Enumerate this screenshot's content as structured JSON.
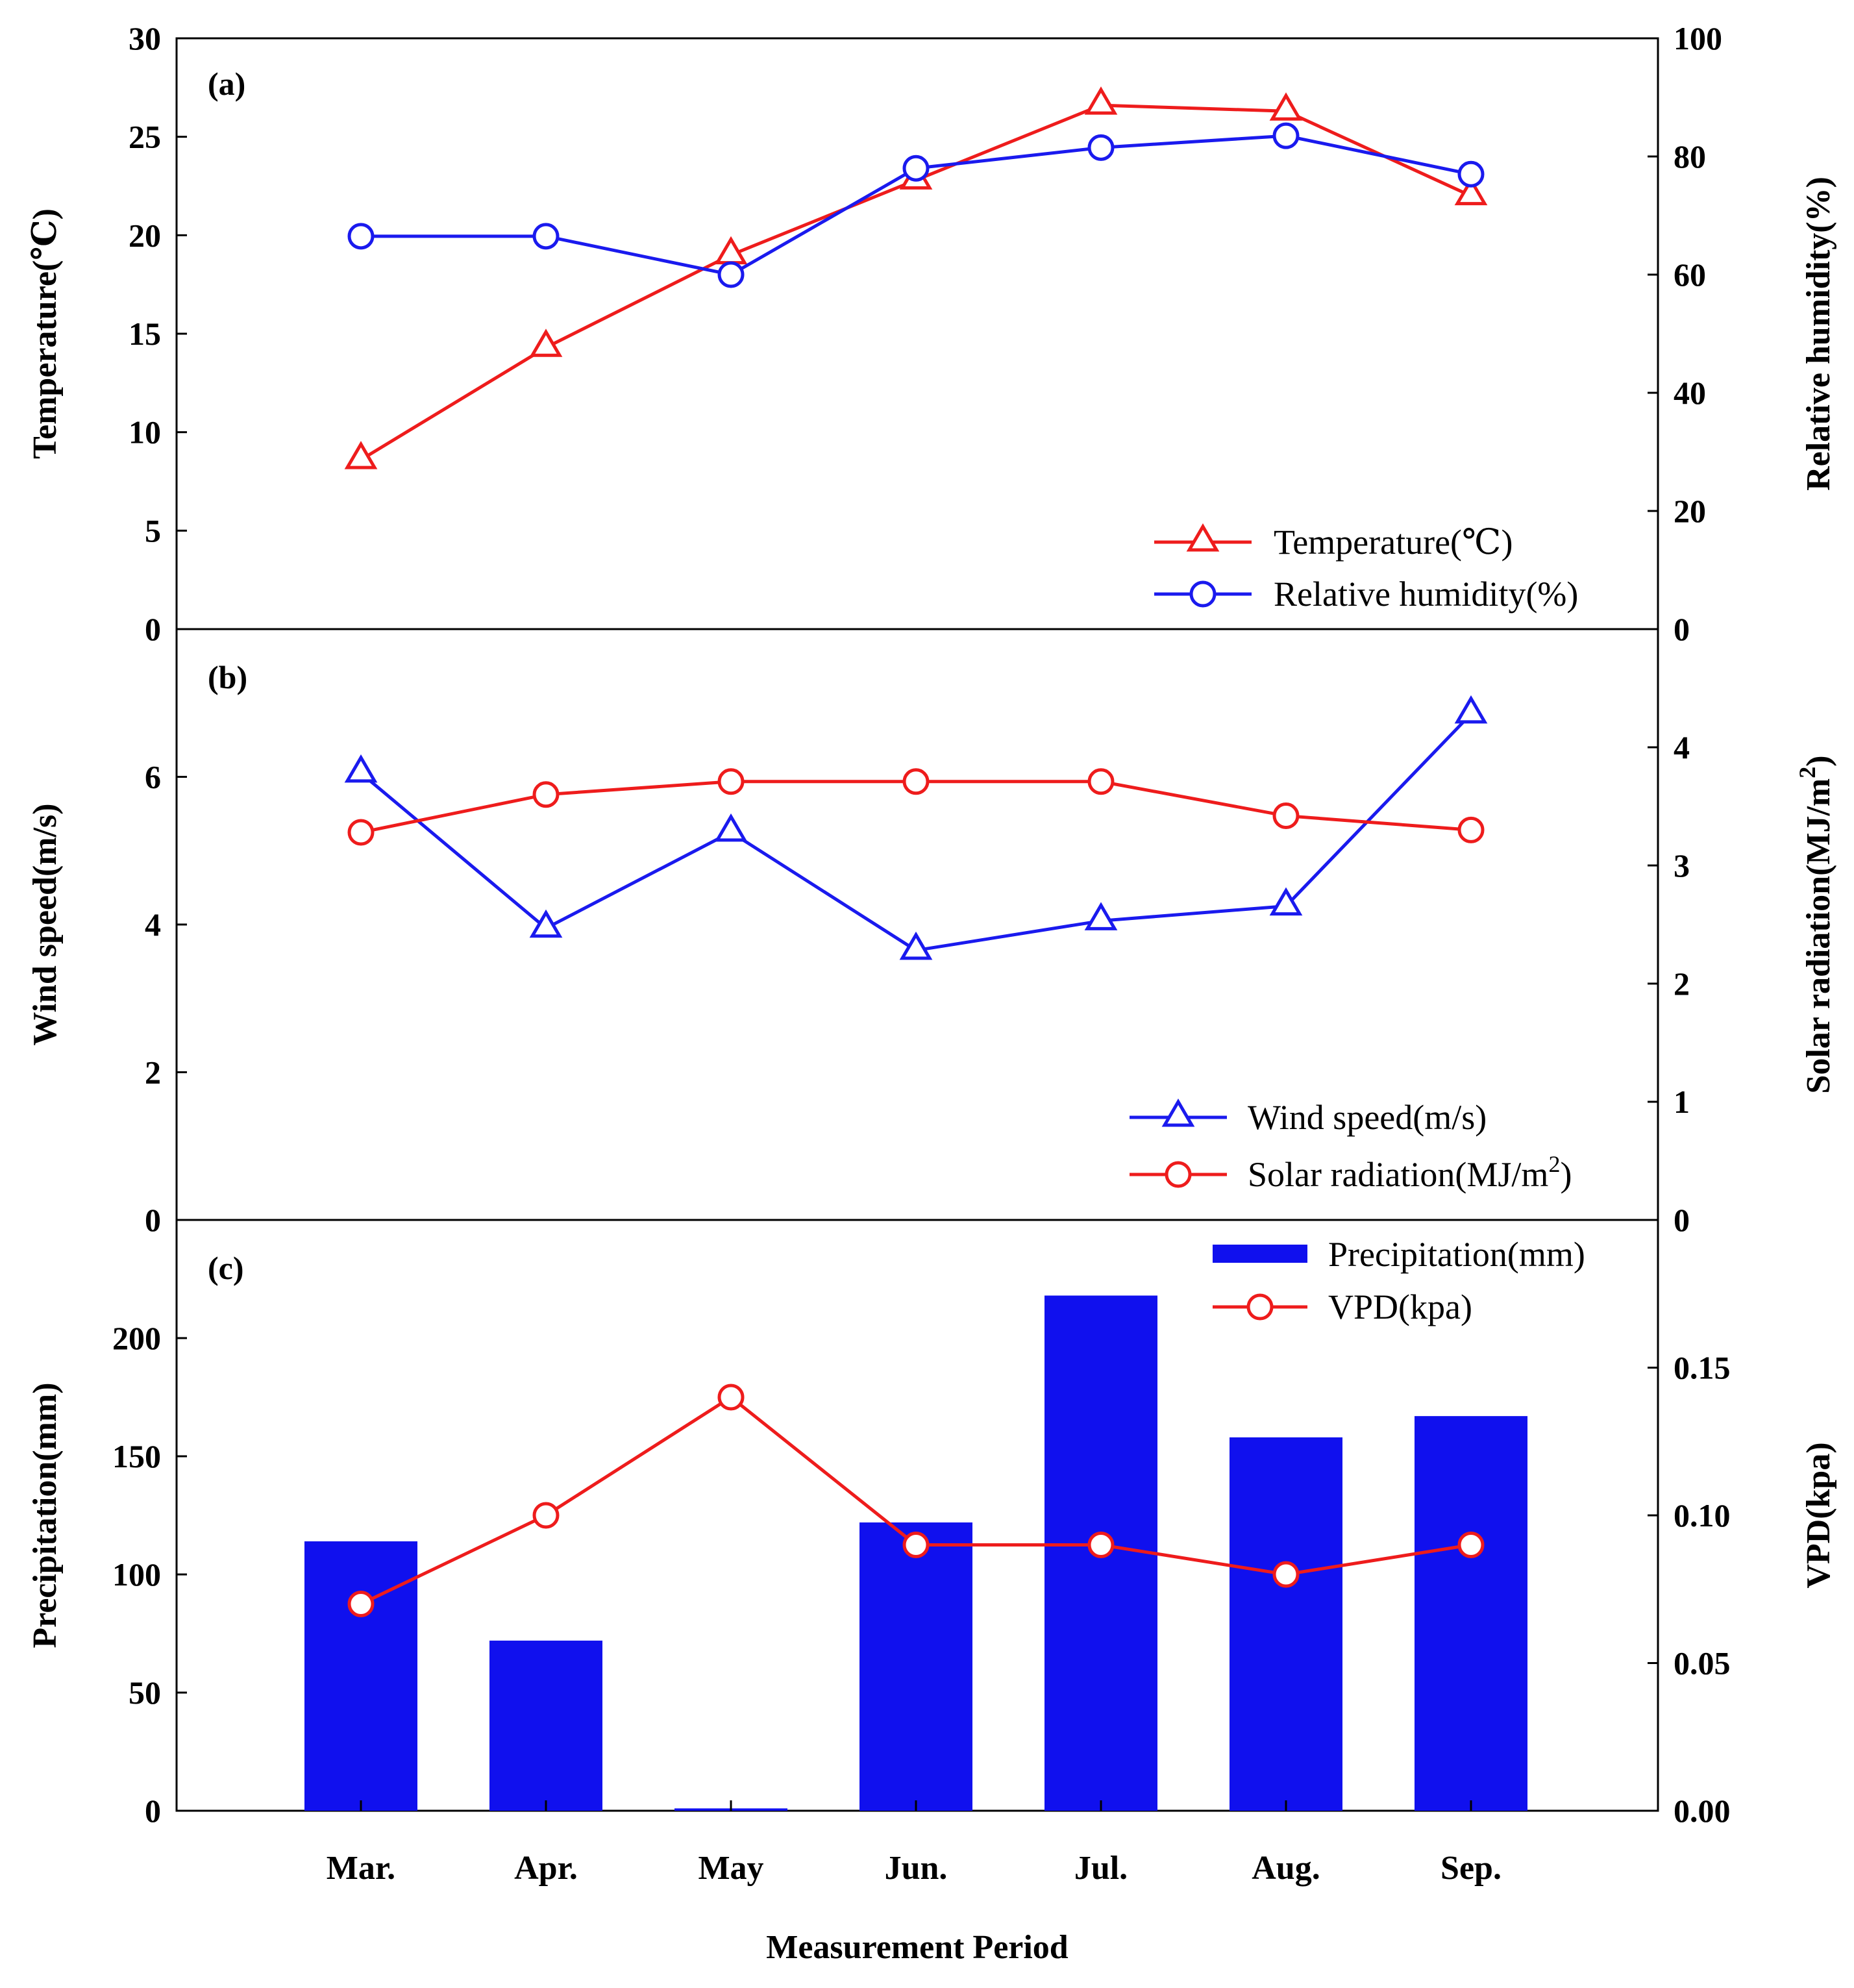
{
  "figure": {
    "xlabel": "Measurement Period",
    "categories": [
      "Mar.",
      "Apr.",
      "May",
      "Jun.",
      "Jul.",
      "Aug.",
      "Sep."
    ],
    "colors": {
      "red": "#ee1c1c",
      "blue": "#1a1aee",
      "bar": "#1010ee"
    }
  },
  "chart_data": [
    {
      "panel": "(a)",
      "type": "line",
      "categories": [
        "Mar.",
        "Apr.",
        "May",
        "Jun.",
        "Jul.",
        "Aug.",
        "Sep."
      ],
      "left_axis": {
        "label": "Temperature(℃)",
        "ylim": [
          0,
          30
        ],
        "ticks": [
          "0",
          "5",
          "10",
          "15",
          "20",
          "25",
          "30"
        ]
      },
      "right_axis": {
        "label": "Relative humidity(%)",
        "ylim": [
          0,
          100
        ],
        "ticks": [
          "0",
          "20",
          "40",
          "60",
          "80",
          "100"
        ]
      },
      "series": [
        {
          "name": "Temperature(℃)",
          "axis": "left",
          "marker": "triangle",
          "color": "#ee1c1c",
          "values": [
            8.6,
            14.3,
            19.0,
            22.8,
            26.6,
            26.3,
            22.0
          ]
        },
        {
          "name": "Relative humidity(%)",
          "axis": "right",
          "marker": "circle",
          "color": "#1a1aee",
          "values": [
            66.5,
            66.5,
            60.0,
            78.0,
            81.5,
            83.5,
            77.0
          ]
        }
      ],
      "legend": [
        "Temperature(℃)",
        "Relative humidity(%)"
      ]
    },
    {
      "panel": "(b)",
      "type": "line",
      "categories": [
        "Mar.",
        "Apr.",
        "May",
        "Jun.",
        "Jul.",
        "Aug.",
        "Sep."
      ],
      "left_axis": {
        "label": "Wind speed(m/s)",
        "ylim": [
          0,
          8
        ],
        "ticks": [
          "0",
          "2",
          "4",
          "6"
        ]
      },
      "right_axis": {
        "label": "Solar radiation(MJ/m",
        "label_sup": "2",
        "label_tail": ")",
        "ylim": [
          0,
          5
        ],
        "ticks": [
          "0",
          "1",
          "2",
          "3",
          "4"
        ]
      },
      "series": [
        {
          "name": "Wind speed(m/s)",
          "axis": "left",
          "marker": "triangle",
          "color": "#1a1aee",
          "values": [
            6.05,
            3.95,
            5.25,
            3.65,
            4.05,
            4.25,
            6.85
          ]
        },
        {
          "name": "Solar radiation(MJ/m2)",
          "axis": "right",
          "marker": "circle",
          "color": "#ee1c1c",
          "values": [
            3.28,
            3.6,
            3.71,
            3.71,
            3.71,
            3.42,
            3.3
          ]
        }
      ],
      "legend": [
        {
          "text": "Wind speed(m/s)"
        },
        {
          "text": "Solar radiation(MJ/m",
          "sup": "2",
          "tail": ")"
        }
      ]
    },
    {
      "panel": "(c)",
      "type": "bar+line",
      "categories": [
        "Mar.",
        "Apr.",
        "May",
        "Jun.",
        "Jul.",
        "Aug.",
        "Sep."
      ],
      "left_axis": {
        "label": "Precipitation(mm)",
        "ylim": [
          0,
          250
        ],
        "ticks": [
          "0",
          "50",
          "100",
          "150",
          "200"
        ]
      },
      "right_axis": {
        "label": "VPD(kpa)",
        "ylim": [
          0,
          0.2
        ],
        "ticks": [
          "0.00",
          "0.05",
          "0.10",
          "0.15"
        ]
      },
      "series": [
        {
          "name": "Precipitation(mm)",
          "axis": "left",
          "kind": "bar",
          "color": "#1010ee",
          "values": [
            114,
            72,
            1,
            122,
            218,
            158,
            167
          ]
        },
        {
          "name": "VPD(kpa)",
          "axis": "right",
          "marker": "circle",
          "color": "#ee1c1c",
          "values": [
            0.07,
            0.1,
            0.14,
            0.09,
            0.09,
            0.08,
            0.09
          ]
        }
      ],
      "legend": [
        "Precipitation(mm)",
        "VPD(kpa)"
      ]
    }
  ]
}
